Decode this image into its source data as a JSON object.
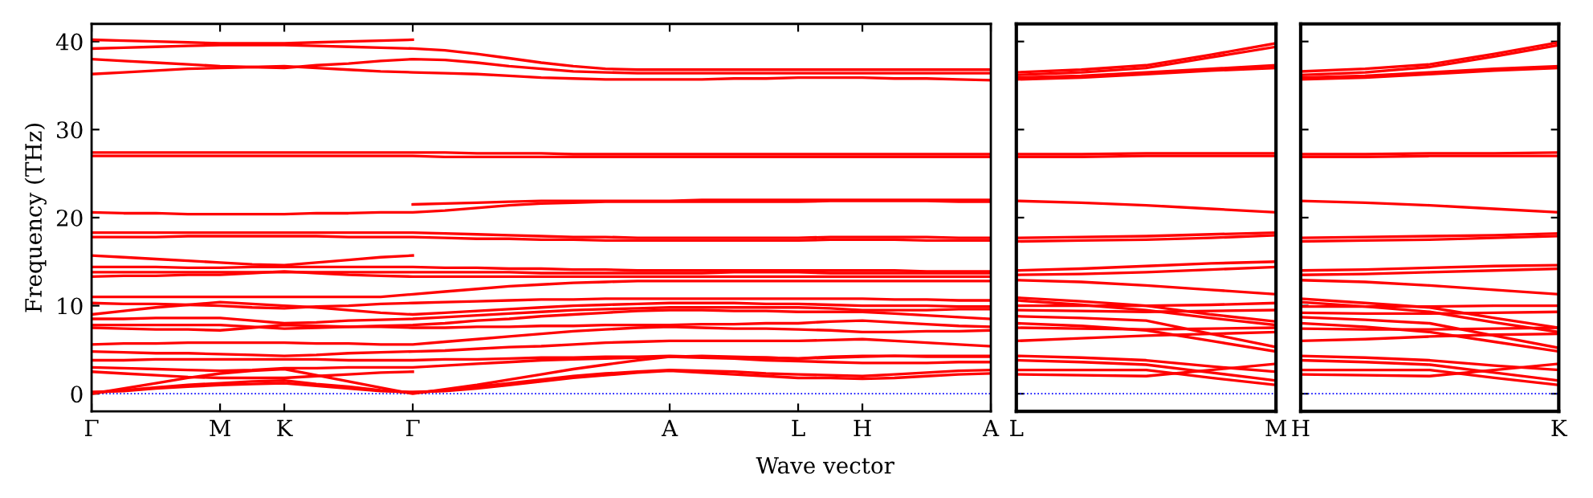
{
  "chart_data": [
    {
      "type": "line",
      "ylabel": "Frequency (THz)",
      "xlabel": "Wave vector",
      "ylim": [
        -2,
        42
      ],
      "yticks": [
        0,
        10,
        20,
        30,
        40
      ],
      "grid": false,
      "categories": [
        "Γ",
        null,
        null,
        null,
        "M",
        null,
        "K",
        null,
        null,
        null,
        "Γ",
        null,
        null,
        null,
        null,
        null,
        null,
        null,
        "A",
        null,
        null,
        null,
        "L",
        null,
        "H",
        null,
        null,
        null,
        "A"
      ],
      "ref_lines": [
        {
          "axis": "y",
          "value": 0,
          "color": "#0000ff",
          "line_style": "dotted"
        }
      ],
      "series": [
        {
          "color": "#ff0000",
          "values": [
            40.2,
            40.1,
            40.0,
            39.9,
            39.8,
            39.8,
            39.8,
            39.9,
            40.0,
            40.1,
            40.2,
            null,
            null,
            null,
            null,
            null,
            null,
            null,
            null,
            null,
            null,
            null,
            null,
            null,
            null,
            null,
            null,
            null,
            null
          ]
        },
        {
          "color": "#ff0000",
          "values": [
            39.2,
            39.3,
            39.4,
            39.5,
            39.6,
            39.6,
            39.6,
            39.5,
            39.4,
            39.3,
            39.2,
            39.0,
            38.6,
            38.1,
            37.6,
            37.2,
            36.9,
            36.8,
            36.8,
            36.8,
            36.8,
            36.8,
            36.8,
            36.8,
            36.8,
            36.8,
            36.8,
            36.8,
            36.8
          ]
        },
        {
          "color": "#ff0000",
          "values": [
            38.0,
            37.8,
            37.6,
            37.4,
            37.2,
            37.1,
            37.0,
            37.3,
            37.5,
            37.8,
            38.0,
            37.9,
            37.6,
            37.2,
            36.9,
            36.6,
            36.5,
            36.4,
            36.4,
            36.4,
            36.4,
            36.4,
            36.4,
            36.4,
            36.4,
            36.4,
            36.4,
            36.4,
            36.4
          ]
        },
        {
          "color": "#ff0000",
          "values": [
            36.3,
            36.5,
            36.7,
            36.9,
            37.0,
            37.1,
            37.2,
            37.0,
            36.8,
            36.6,
            36.5,
            36.4,
            36.3,
            36.1,
            35.9,
            35.8,
            35.7,
            35.7,
            35.7,
            35.7,
            35.8,
            35.8,
            35.9,
            35.9,
            35.9,
            35.8,
            35.8,
            35.7,
            35.6
          ]
        },
        {
          "color": "#ff0000",
          "values": [
            27.4,
            27.4,
            27.4,
            27.4,
            27.4,
            27.4,
            27.4,
            27.4,
            27.4,
            27.4,
            27.4,
            27.4,
            27.3,
            27.3,
            27.3,
            27.2,
            27.2,
            27.2,
            27.2,
            27.2,
            27.2,
            27.2,
            27.2,
            27.2,
            27.2,
            27.2,
            27.2,
            27.2,
            27.2
          ]
        },
        {
          "color": "#ff0000",
          "values": [
            27.0,
            27.0,
            27.0,
            27.0,
            27.0,
            27.0,
            27.0,
            27.0,
            27.0,
            27.0,
            27.0,
            26.9,
            26.9,
            26.9,
            26.9,
            26.9,
            26.9,
            26.9,
            26.9,
            26.9,
            26.9,
            26.9,
            26.9,
            26.9,
            26.9,
            26.9,
            26.9,
            26.9,
            26.9
          ]
        },
        {
          "color": "#ff0000",
          "values": [
            20.6,
            20.5,
            20.5,
            20.4,
            20.4,
            20.4,
            20.4,
            20.5,
            20.5,
            20.6,
            20.6,
            20.8,
            21.1,
            21.4,
            21.6,
            21.7,
            21.8,
            21.8,
            21.8,
            21.8,
            21.8,
            21.8,
            21.8,
            21.9,
            21.9,
            21.9,
            21.9,
            21.8,
            21.8
          ]
        },
        {
          "color": "#ff0000",
          "values": [
            null,
            null,
            null,
            null,
            null,
            null,
            null,
            null,
            null,
            null,
            21.5,
            21.6,
            21.7,
            21.8,
            21.9,
            21.9,
            21.9,
            21.9,
            21.9,
            22.0,
            22.0,
            22.0,
            22.0,
            22.0,
            22.0,
            22.0,
            22.0,
            22.0,
            22.0
          ]
        },
        {
          "color": "#ff0000",
          "values": [
            18.3,
            18.3,
            18.3,
            18.3,
            18.3,
            18.3,
            18.3,
            18.3,
            18.3,
            18.3,
            18.3,
            18.2,
            18.1,
            18.0,
            17.9,
            17.8,
            17.8,
            17.7,
            17.7,
            17.7,
            17.7,
            17.7,
            17.7,
            17.8,
            17.8,
            17.8,
            17.8,
            17.7,
            17.7
          ]
        },
        {
          "color": "#ff0000",
          "values": [
            17.8,
            17.8,
            17.8,
            17.9,
            17.9,
            17.9,
            17.9,
            17.9,
            17.8,
            17.8,
            17.8,
            17.7,
            17.6,
            17.6,
            17.5,
            17.5,
            17.4,
            17.4,
            17.4,
            17.4,
            17.4,
            17.4,
            17.4,
            17.5,
            17.5,
            17.5,
            17.4,
            17.4,
            17.4
          ]
        },
        {
          "color": "#ff0000",
          "values": [
            15.7,
            15.5,
            15.3,
            15.1,
            14.9,
            14.7,
            14.6,
            14.9,
            15.2,
            15.5,
            15.7,
            null,
            null,
            null,
            null,
            null,
            null,
            null,
            null,
            null,
            null,
            null,
            null,
            null,
            null,
            null,
            null,
            null,
            null
          ]
        },
        {
          "color": "#ff0000",
          "values": [
            14.4,
            14.4,
            14.4,
            14.3,
            14.3,
            14.4,
            14.4,
            14.4,
            14.4,
            14.4,
            14.4,
            14.3,
            14.3,
            14.2,
            14.2,
            14.1,
            14.1,
            14.0,
            14.0,
            14.0,
            14.0,
            14.0,
            14.0,
            14.0,
            14.0,
            14.0,
            13.9,
            13.9,
            13.9
          ]
        },
        {
          "color": "#ff0000",
          "values": [
            13.8,
            13.8,
            13.8,
            13.8,
            13.8,
            13.8,
            13.8,
            13.8,
            13.8,
            13.8,
            13.8,
            13.8,
            13.8,
            13.8,
            13.7,
            13.7,
            13.7,
            13.7,
            13.7,
            13.7,
            13.8,
            13.8,
            13.8,
            13.7,
            13.7,
            13.7,
            13.7,
            13.7,
            13.7
          ]
        },
        {
          "color": "#ff0000",
          "values": [
            13.3,
            13.4,
            13.4,
            13.5,
            13.5,
            13.7,
            13.9,
            13.7,
            13.5,
            13.4,
            13.3,
            13.3,
            13.3,
            13.3,
            13.3,
            13.3,
            13.3,
            13.3,
            13.3,
            13.3,
            13.3,
            13.3,
            13.3,
            13.3,
            13.3,
            13.3,
            13.3,
            13.3,
            13.3
          ]
        },
        {
          "color": "#ff0000",
          "values": [
            11.0,
            11.0,
            11.0,
            11.0,
            11.0,
            11.0,
            11.0,
            11.0,
            11.0,
            11.0,
            11.3,
            11.6,
            11.9,
            12.2,
            12.4,
            12.6,
            12.7,
            12.8,
            12.8,
            12.8,
            12.8,
            12.8,
            12.8,
            12.8,
            12.8,
            12.8,
            12.8,
            12.8,
            12.8
          ]
        },
        {
          "color": "#ff0000",
          "values": [
            10.3,
            10.2,
            10.2,
            10.1,
            10.0,
            9.8,
            9.7,
            9.9,
            10.0,
            10.2,
            10.3,
            10.4,
            10.5,
            10.6,
            10.7,
            10.7,
            10.8,
            10.8,
            10.8,
            10.8,
            10.8,
            10.8,
            10.8,
            10.8,
            10.8,
            10.7,
            10.7,
            10.6,
            10.6
          ]
        },
        {
          "color": "#ff0000",
          "values": [
            9.0,
            9.4,
            9.8,
            10.1,
            10.4,
            10.2,
            10.0,
            9.8,
            9.5,
            9.2,
            9.0,
            9.2,
            9.4,
            9.6,
            9.8,
            10.0,
            10.1,
            10.2,
            10.3,
            10.3,
            10.3,
            10.2,
            10.2,
            10.1,
            10.0,
            10.0,
            10.0,
            9.9,
            9.9
          ]
        },
        {
          "color": "#ff0000",
          "values": [
            8.5,
            8.5,
            8.6,
            8.6,
            8.6,
            8.3,
            8.0,
            8.1,
            8.3,
            8.4,
            8.5,
            8.7,
            8.9,
            9.1,
            9.3,
            9.5,
            9.6,
            9.7,
            9.8,
            9.8,
            9.8,
            9.8,
            9.8,
            9.7,
            9.5,
            9.5,
            9.5,
            9.6,
            9.6
          ]
        },
        {
          "color": "#ff0000",
          "values": [
            7.8,
            7.8,
            7.8,
            7.8,
            7.8,
            7.6,
            7.4,
            7.5,
            7.6,
            7.7,
            7.8,
            8.0,
            8.3,
            8.5,
            8.8,
            9.0,
            9.2,
            9.4,
            9.5,
            9.5,
            9.4,
            9.4,
            9.3,
            9.3,
            9.3,
            9.1,
            8.9,
            8.7,
            8.5
          ]
        },
        {
          "color": "#ff0000",
          "values": [
            7.5,
            7.4,
            7.3,
            7.3,
            7.2,
            7.5,
            7.8,
            7.7,
            7.6,
            7.6,
            7.5,
            7.5,
            7.6,
            7.6,
            7.7,
            7.7,
            7.8,
            7.8,
            7.8,
            7.9,
            7.9,
            8.0,
            8.0,
            8.2,
            8.3,
            8.1,
            7.9,
            7.7,
            7.6
          ]
        },
        {
          "color": "#ff0000",
          "values": [
            5.6,
            5.7,
            5.7,
            5.8,
            5.8,
            5.8,
            5.8,
            5.7,
            5.7,
            5.6,
            5.6,
            5.9,
            6.2,
            6.5,
            6.8,
            7.1,
            7.3,
            7.5,
            7.6,
            7.5,
            7.4,
            7.4,
            7.3,
            7.2,
            7.0,
            7.0,
            7.1,
            7.1,
            7.2
          ]
        },
        {
          "color": "#ff0000",
          "values": [
            4.8,
            4.7,
            4.6,
            4.6,
            4.5,
            4.4,
            4.3,
            4.4,
            4.6,
            4.7,
            4.8,
            4.9,
            5.1,
            5.3,
            5.4,
            5.6,
            5.8,
            5.9,
            6.0,
            6.0,
            6.0,
            6.0,
            6.0,
            6.1,
            6.2,
            6.0,
            5.8,
            5.6,
            5.4
          ]
        },
        {
          "color": "#ff0000",
          "values": [
            3.8,
            3.8,
            3.9,
            3.9,
            3.9,
            3.9,
            3.9,
            3.9,
            3.8,
            3.8,
            3.8,
            3.9,
            3.9,
            4.0,
            4.1,
            4.1,
            4.2,
            4.2,
            4.3,
            4.2,
            4.1,
            4.1,
            4.0,
            4.2,
            4.3,
            4.3,
            4.2,
            4.2,
            4.2
          ]
        },
        {
          "color": "#ff0000",
          "values": [
            3.0,
            2.9,
            2.8,
            2.7,
            2.6,
            2.7,
            2.9,
            2.9,
            3.0,
            3.0,
            3.0,
            3.2,
            3.4,
            3.6,
            3.8,
            3.9,
            4.0,
            4.1,
            4.2,
            4.1,
            4.0,
            3.8,
            3.7,
            3.6,
            3.5,
            3.5,
            3.5,
            3.6,
            3.6
          ]
        },
        {
          "color": "#ff0000",
          "values": [
            2.5,
            2.3,
            2.1,
            1.9,
            1.8,
            1.8,
            1.8,
            2.0,
            2.2,
            2.4,
            2.5,
            null,
            null,
            null,
            null,
            null,
            null,
            null,
            null,
            null,
            null,
            null,
            null,
            null,
            null,
            null,
            null,
            null,
            null
          ]
        },
        {
          "color": "#ff0000",
          "values": [
            0,
            0.6,
            1.2,
            1.8,
            2.3,
            2.6,
            2.8,
            2.1,
            1.4,
            0.7,
            0,
            0.5,
            1.0,
            1.6,
            2.2,
            2.8,
            3.3,
            3.8,
            4.2,
            4.3,
            4.2,
            4.1,
            4.0,
            4.1,
            4.2,
            4.3,
            4.3,
            4.3,
            4.3
          ]
        },
        {
          "color": "#ff0000",
          "values": [
            0.1,
            0.4,
            0.7,
            1.0,
            1.2,
            1.4,
            1.5,
            1.1,
            0.8,
            0.4,
            0.1,
            0.4,
            0.8,
            1.2,
            1.6,
            2.0,
            2.3,
            2.5,
            2.7,
            2.6,
            2.5,
            2.3,
            2.2,
            2.1,
            2.0,
            2.2,
            2.4,
            2.6,
            2.7
          ]
        },
        {
          "color": "#ff0000",
          "values": [
            0.2,
            0.3,
            0.6,
            0.8,
            1.0,
            1.1,
            1.2,
            0.9,
            0.6,
            0.3,
            0.2,
            0.3,
            0.6,
            1.0,
            1.4,
            1.8,
            2.1,
            2.4,
            2.6,
            2.4,
            2.2,
            2.0,
            1.8,
            1.8,
            1.7,
            1.8,
            2.0,
            2.2,
            2.3
          ]
        }
      ]
    },
    {
      "type": "line",
      "ylim": [
        -2,
        42
      ],
      "yticks": [
        0,
        10,
        20,
        30,
        40
      ],
      "tick_labels": "x",
      "grid": false,
      "categories": [
        "L",
        null,
        null,
        null,
        "M"
      ],
      "ref_lines": [
        {
          "axis": "y",
          "value": 0,
          "color": "#0000ff",
          "line_style": "dotted"
        }
      ],
      "series": [
        {
          "color": "#ff0000",
          "values": [
            36.5,
            36.8,
            37.3,
            38.5,
            39.8
          ]
        },
        {
          "color": "#ff0000",
          "values": [
            36.2,
            36.5,
            37.0,
            38.2,
            39.4
          ]
        },
        {
          "color": "#ff0000",
          "values": [
            35.9,
            36.1,
            36.5,
            36.9,
            37.3
          ]
        },
        {
          "color": "#ff0000",
          "values": [
            35.7,
            35.9,
            36.3,
            36.7,
            37.0
          ]
        },
        {
          "color": "#ff0000",
          "values": [
            27.2,
            27.2,
            27.3,
            27.3,
            27.3
          ]
        },
        {
          "color": "#ff0000",
          "values": [
            26.9,
            26.9,
            27.0,
            27.0,
            27.0
          ]
        },
        {
          "color": "#ff0000",
          "values": [
            21.9,
            21.7,
            21.4,
            21.0,
            20.6
          ]
        },
        {
          "color": "#ff0000",
          "values": [
            17.7,
            17.8,
            17.9,
            18.1,
            18.3
          ]
        },
        {
          "color": "#ff0000",
          "values": [
            17.3,
            17.4,
            17.5,
            17.7,
            18.0
          ]
        },
        {
          "color": "#ff0000",
          "values": [
            14.0,
            14.2,
            14.5,
            14.8,
            15.0
          ]
        },
        {
          "color": "#ff0000",
          "values": [
            13.5,
            13.6,
            13.8,
            14.1,
            14.4
          ]
        },
        {
          "color": "#ff0000",
          "values": [
            12.9,
            12.7,
            12.3,
            11.8,
            11.3
          ]
        },
        {
          "color": "#ff0000",
          "values": [
            10.9,
            10.5,
            10.0,
            9.0,
            8.2
          ]
        },
        {
          "color": "#ff0000",
          "values": [
            10.6,
            10.1,
            9.5,
            8.6,
            7.8
          ]
        },
        {
          "color": "#ff0000",
          "values": [
            10.0,
            10.0,
            10.0,
            10.1,
            10.3
          ]
        },
        {
          "color": "#ff0000",
          "values": [
            9.5,
            9.4,
            9.3,
            9.4,
            9.5
          ]
        },
        {
          "color": "#ff0000",
          "values": [
            8.8,
            8.6,
            8.3,
            6.8,
            5.3
          ]
        },
        {
          "color": "#ff0000",
          "values": [
            8.0,
            7.7,
            7.2,
            6.0,
            4.8
          ]
        },
        {
          "color": "#ff0000",
          "values": [
            7.5,
            7.4,
            7.3,
            7.4,
            7.5
          ]
        },
        {
          "color": "#ff0000",
          "values": [
            6.0,
            6.3,
            6.6,
            6.8,
            7.0
          ]
        },
        {
          "color": "#ff0000",
          "values": [
            4.3,
            4.1,
            3.8,
            3.1,
            2.5
          ]
        },
        {
          "color": "#ff0000",
          "values": [
            3.8,
            3.6,
            3.3,
            2.4,
            1.5
          ]
        },
        {
          "color": "#ff0000",
          "values": [
            2.7,
            2.7,
            2.7,
            1.8,
            1.0
          ]
        },
        {
          "color": "#ff0000",
          "values": [
            2.2,
            2.1,
            2.0,
            2.7,
            3.4
          ]
        }
      ]
    },
    {
      "type": "line",
      "ylim": [
        -2,
        42
      ],
      "yticks": [
        0,
        10,
        20,
        30,
        40
      ],
      "tick_labels": "x",
      "grid": false,
      "categories": [
        "H",
        null,
        null,
        null,
        "K"
      ],
      "ref_lines": [
        {
          "axis": "y",
          "value": 0,
          "color": "#0000ff",
          "line_style": "dotted"
        }
      ],
      "series": [
        {
          "color": "#ff0000",
          "values": [
            36.6,
            36.9,
            37.4,
            38.6,
            39.9
          ]
        },
        {
          "color": "#ff0000",
          "values": [
            36.2,
            36.5,
            37.1,
            38.3,
            39.6
          ]
        },
        {
          "color": "#ff0000",
          "values": [
            35.9,
            36.1,
            36.5,
            36.9,
            37.2
          ]
        },
        {
          "color": "#ff0000",
          "values": [
            35.7,
            35.9,
            36.3,
            36.7,
            37.0
          ]
        },
        {
          "color": "#ff0000",
          "values": [
            27.2,
            27.2,
            27.3,
            27.3,
            27.4
          ]
        },
        {
          "color": "#ff0000",
          "values": [
            26.9,
            26.9,
            27.0,
            27.0,
            27.0
          ]
        },
        {
          "color": "#ff0000",
          "values": [
            21.9,
            21.7,
            21.4,
            21.0,
            20.6
          ]
        },
        {
          "color": "#ff0000",
          "values": [
            17.7,
            17.8,
            17.9,
            18.0,
            18.2
          ]
        },
        {
          "color": "#ff0000",
          "values": [
            17.3,
            17.4,
            17.5,
            17.7,
            17.9
          ]
        },
        {
          "color": "#ff0000",
          "values": [
            14.0,
            14.1,
            14.3,
            14.5,
            14.6
          ]
        },
        {
          "color": "#ff0000",
          "values": [
            13.5,
            13.6,
            13.8,
            14.0,
            14.2
          ]
        },
        {
          "color": "#ff0000",
          "values": [
            12.9,
            12.7,
            12.3,
            11.8,
            11.3
          ]
        },
        {
          "color": "#ff0000",
          "values": [
            10.8,
            10.3,
            9.8,
            8.6,
            7.5
          ]
        },
        {
          "color": "#ff0000",
          "values": [
            10.4,
            9.9,
            9.3,
            8.1,
            7.0
          ]
        },
        {
          "color": "#ff0000",
          "values": [
            9.9,
            9.9,
            9.9,
            10.0,
            10.0
          ]
        },
        {
          "color": "#ff0000",
          "values": [
            9.2,
            9.1,
            9.1,
            9.2,
            9.3
          ]
        },
        {
          "color": "#ff0000",
          "values": [
            8.7,
            8.4,
            8.0,
            6.6,
            5.2
          ]
        },
        {
          "color": "#ff0000",
          "values": [
            8.0,
            7.6,
            7.0,
            5.9,
            4.8
          ]
        },
        {
          "color": "#ff0000",
          "values": [
            7.4,
            7.3,
            7.3,
            7.4,
            7.5
          ]
        },
        {
          "color": "#ff0000",
          "values": [
            6.0,
            6.2,
            6.5,
            6.7,
            6.8
          ]
        },
        {
          "color": "#ff0000",
          "values": [
            4.3,
            4.1,
            3.8,
            3.2,
            2.7
          ]
        },
        {
          "color": "#ff0000",
          "values": [
            3.8,
            3.6,
            3.3,
            2.4,
            1.5
          ]
        },
        {
          "color": "#ff0000",
          "values": [
            2.7,
            2.7,
            2.7,
            1.8,
            1.0
          ]
        },
        {
          "color": "#ff0000",
          "values": [
            2.2,
            2.1,
            2.0,
            2.7,
            3.4
          ]
        }
      ]
    }
  ]
}
